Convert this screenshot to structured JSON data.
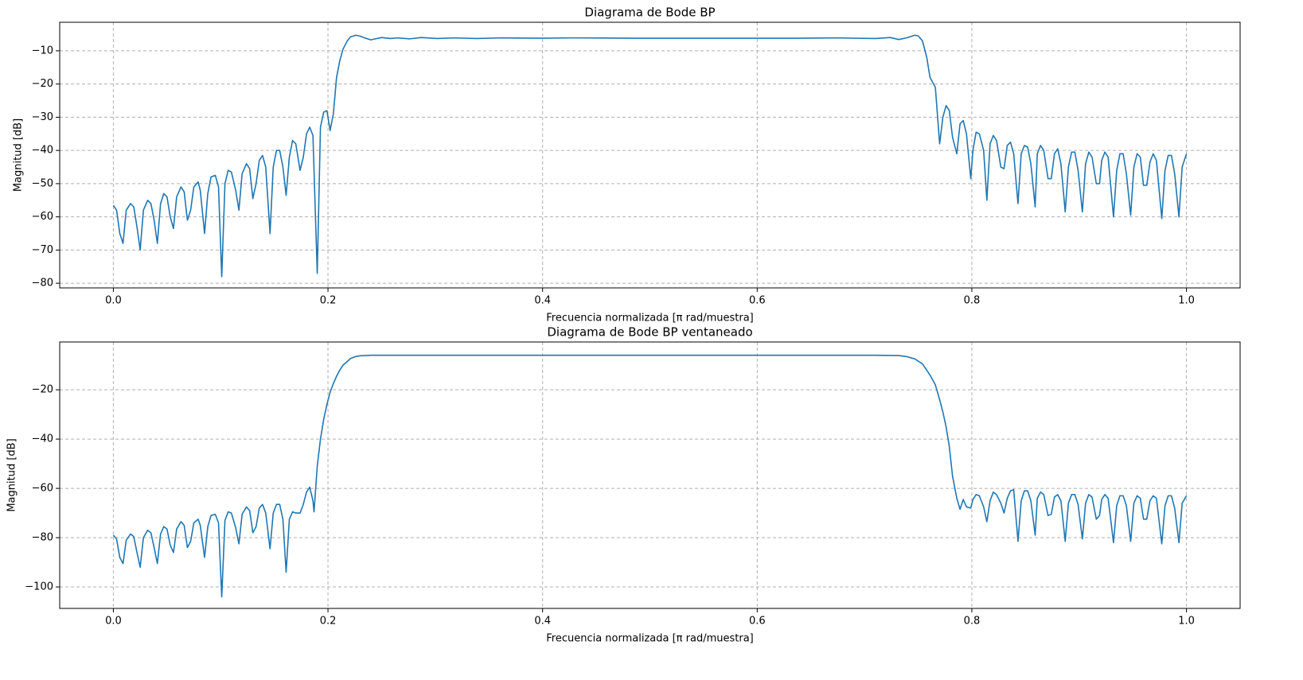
{
  "chart_data": [
    {
      "type": "line",
      "title": "Diagrama de Bode BP",
      "xlabel": "Frecuencia normalizada [π rad/muestra]",
      "ylabel": "Magnitud [dB]",
      "color": "#1f77b4",
      "grid": true,
      "xlim": [
        -0.05,
        1.05
      ],
      "ylim": [
        -81.4,
        -1.4
      ],
      "xticks": [
        {
          "value": 0,
          "label": "0.0"
        },
        {
          "value": 0.2,
          "label": "0.2"
        },
        {
          "value": 0.4,
          "label": "0.4"
        },
        {
          "value": 0.6,
          "label": "0.6"
        },
        {
          "value": 0.8,
          "label": "0.8"
        },
        {
          "value": 1,
          "label": "1.0"
        }
      ],
      "yticks": [
        {
          "value": -80,
          "label": "−80"
        },
        {
          "value": -70,
          "label": "−70"
        },
        {
          "value": -60,
          "label": "−60"
        },
        {
          "value": -50,
          "label": "−50"
        },
        {
          "value": -40,
          "label": "−40"
        },
        {
          "value": -30,
          "label": "−30"
        },
        {
          "value": -20,
          "label": "−20"
        },
        {
          "value": -10,
          "label": "−10"
        }
      ],
      "x": [
        0,
        0.003,
        0.006,
        0.009,
        0.012,
        0.016,
        0.019,
        0.022,
        0.025,
        0.028,
        0.032,
        0.035,
        0.038,
        0.041,
        0.044,
        0.047,
        0.05,
        0.053,
        0.056,
        0.059,
        0.063,
        0.066,
        0.069,
        0.072,
        0.075,
        0.079,
        0.081,
        0.085,
        0.088,
        0.091,
        0.095,
        0.098,
        0.101,
        0.104,
        0.107,
        0.11,
        0.114,
        0.117,
        0.12,
        0.124,
        0.127,
        0.13,
        0.133,
        0.136,
        0.139,
        0.142,
        0.146,
        0.149,
        0.152,
        0.155,
        0.158,
        0.161,
        0.164,
        0.167,
        0.17,
        0.174,
        0.177,
        0.18,
        0.183,
        0.186,
        0.19,
        0.193,
        0.196,
        0.199,
        0.202,
        0.205,
        0.208,
        0.211,
        0.214,
        0.218,
        0.221,
        0.226,
        0.23,
        0.235,
        0.24,
        0.244,
        0.25,
        0.258,
        0.265,
        0.276,
        0.287,
        0.302,
        0.317,
        0.339,
        0.361,
        0.399,
        0.428,
        0.487,
        0.561,
        0.636,
        0.673,
        0.71,
        0.724,
        0.732,
        0.739,
        0.747,
        0.75,
        0.754,
        0.758,
        0.761,
        0.766,
        0.77,
        0.773,
        0.776,
        0.779,
        0.782,
        0.786,
        0.789,
        0.792,
        0.795,
        0.799,
        0.801,
        0.804,
        0.807,
        0.811,
        0.814,
        0.817,
        0.82,
        0.823,
        0.827,
        0.83,
        0.833,
        0.836,
        0.839,
        0.843,
        0.846,
        0.849,
        0.852,
        0.855,
        0.859,
        0.861,
        0.864,
        0.867,
        0.871,
        0.874,
        0.877,
        0.88,
        0.883,
        0.887,
        0.89,
        0.893,
        0.896,
        0.899,
        0.903,
        0.906,
        0.909,
        0.912,
        0.916,
        0.919,
        0.921,
        0.924,
        0.927,
        0.932,
        0.935,
        0.938,
        0.941,
        0.944,
        0.948,
        0.951,
        0.954,
        0.957,
        0.96,
        0.963,
        0.966,
        0.969,
        0.972,
        0.977,
        0.98,
        0.983,
        0.986,
        0.989,
        0.993,
        0.996,
        1
      ],
      "values": [
        -56.5,
        -58,
        -65,
        -68,
        -58,
        -56,
        -57,
        -63,
        -70,
        -58,
        -55,
        -56,
        -61,
        -68,
        -56,
        -53,
        -54,
        -60,
        -63.5,
        -54,
        -51,
        -52.5,
        -61,
        -58,
        -51,
        -49.5,
        -52,
        -65,
        -53,
        -48,
        -47.5,
        -51,
        -78,
        -50,
        -46,
        -46.5,
        -52,
        -58,
        -47,
        -44,
        -45.5,
        -54.5,
        -50,
        -43,
        -41.5,
        -45,
        -65,
        -45,
        -40,
        -40,
        -45,
        -53.5,
        -42,
        -37,
        -38,
        -46,
        -42,
        -35,
        -33,
        -35.5,
        -77,
        -33,
        -28.5,
        -28,
        -34,
        -29,
        -18,
        -13,
        -9.5,
        -7,
        -5.8,
        -5.3,
        -5.6,
        -6.2,
        -6.7,
        -6.4,
        -6.0,
        -6.3,
        -6.1,
        -6.4,
        -6.0,
        -6.3,
        -6.1,
        -6.3,
        -6.1,
        -6.2,
        -6.1,
        -6.2,
        -6.2,
        -6.2,
        -6.1,
        -6.3,
        -6.0,
        -6.6,
        -6.1,
        -5.3,
        -5.5,
        -7,
        -12,
        -18,
        -21,
        -38,
        -30,
        -26.5,
        -28,
        -36,
        -41,
        -32,
        -31,
        -35,
        -48.5,
        -40,
        -34.5,
        -35,
        -40,
        -55,
        -38,
        -35.5,
        -37,
        -45,
        -45.5,
        -38.5,
        -37.5,
        -41,
        -56,
        -41,
        -38.5,
        -39,
        -44,
        -57,
        -41,
        -38.5,
        -40,
        -48.5,
        -48.5,
        -41,
        -39.5,
        -44,
        -58.5,
        -45,
        -40.5,
        -40.5,
        -46,
        -58.5,
        -44,
        -40.5,
        -42,
        -50,
        -50,
        -43,
        -40.5,
        -42,
        -60,
        -46,
        -41,
        -41,
        -47,
        -59.5,
        -45,
        -41,
        -42,
        -50.5,
        -50.5,
        -43.5,
        -41,
        -43,
        -60.5,
        -46,
        -41.5,
        -41.5,
        -47,
        -60,
        -45,
        -41
      ]
    },
    {
      "type": "line",
      "title": "Diagrama de Bode BP ventaneado",
      "xlabel": "Frecuencia normalizada [π rad/muestra]",
      "ylabel": "Magnitud [dB]",
      "color": "#1f77b4",
      "grid": true,
      "xlim": [
        -0.05,
        1.05
      ],
      "ylim": [
        -108.7,
        -0.6
      ],
      "xticks": [
        {
          "value": 0,
          "label": "0.0"
        },
        {
          "value": 0.2,
          "label": "0.2"
        },
        {
          "value": 0.4,
          "label": "0.4"
        },
        {
          "value": 0.6,
          "label": "0.6"
        },
        {
          "value": 0.8,
          "label": "0.8"
        },
        {
          "value": 1,
          "label": "1.0"
        }
      ],
      "yticks": [
        {
          "value": -100,
          "label": "−100"
        },
        {
          "value": -80,
          "label": "−80"
        },
        {
          "value": -60,
          "label": "−60"
        },
        {
          "value": -40,
          "label": "−40"
        },
        {
          "value": -20,
          "label": "−20"
        }
      ],
      "x": [
        0,
        0.003,
        0.006,
        0.009,
        0.012,
        0.016,
        0.019,
        0.022,
        0.025,
        0.028,
        0.032,
        0.035,
        0.038,
        0.041,
        0.044,
        0.047,
        0.05,
        0.053,
        0.056,
        0.059,
        0.063,
        0.066,
        0.069,
        0.072,
        0.075,
        0.079,
        0.081,
        0.085,
        0.088,
        0.091,
        0.095,
        0.098,
        0.101,
        0.104,
        0.107,
        0.11,
        0.114,
        0.117,
        0.12,
        0.124,
        0.127,
        0.13,
        0.133,
        0.136,
        0.139,
        0.142,
        0.146,
        0.149,
        0.152,
        0.155,
        0.158,
        0.161,
        0.164,
        0.167,
        0.17,
        0.174,
        0.177,
        0.18,
        0.183,
        0.186,
        0.187,
        0.19,
        0.193,
        0.196,
        0.199,
        0.202,
        0.205,
        0.208,
        0.211,
        0.214,
        0.218,
        0.221,
        0.226,
        0.23,
        0.235,
        0.24,
        0.25,
        0.339,
        0.487,
        0.636,
        0.71,
        0.732,
        0.739,
        0.747,
        0.754,
        0.761,
        0.766,
        0.77,
        0.773,
        0.776,
        0.779,
        0.782,
        0.786,
        0.789,
        0.792,
        0.795,
        0.799,
        0.801,
        0.804,
        0.807,
        0.811,
        0.814,
        0.817,
        0.82,
        0.823,
        0.827,
        0.83,
        0.833,
        0.836,
        0.839,
        0.843,
        0.846,
        0.849,
        0.852,
        0.855,
        0.859,
        0.861,
        0.864,
        0.867,
        0.871,
        0.874,
        0.877,
        0.88,
        0.883,
        0.887,
        0.89,
        0.893,
        0.896,
        0.899,
        0.903,
        0.906,
        0.909,
        0.912,
        0.916,
        0.919,
        0.921,
        0.924,
        0.927,
        0.932,
        0.935,
        0.938,
        0.941,
        0.944,
        0.948,
        0.951,
        0.954,
        0.957,
        0.96,
        0.963,
        0.966,
        0.969,
        0.972,
        0.977,
        0.98,
        0.983,
        0.986,
        0.989,
        0.993,
        0.996,
        1
      ],
      "values": [
        -79,
        -80.5,
        -88,
        -90.5,
        -81,
        -78.5,
        -79.5,
        -86,
        -92,
        -80,
        -77,
        -78,
        -84,
        -90.5,
        -78.5,
        -75.5,
        -76.5,
        -83,
        -86,
        -76.5,
        -73.5,
        -75,
        -84,
        -81.5,
        -74,
        -72.5,
        -75,
        -88,
        -75.5,
        -71,
        -70.5,
        -74,
        -104,
        -73,
        -69.5,
        -70,
        -76,
        -82.5,
        -70.5,
        -67.5,
        -69,
        -78,
        -75.5,
        -68,
        -66.5,
        -70,
        -84.5,
        -70,
        -66.5,
        -66.5,
        -72.5,
        -94,
        -72.5,
        -69.5,
        -70,
        -70,
        -66.5,
        -61.5,
        -59.5,
        -65,
        -69.5,
        -51,
        -40,
        -32,
        -26,
        -21,
        -17.5,
        -14.5,
        -12,
        -10,
        -8.5,
        -7.3,
        -6.5,
        -6.2,
        -6.1,
        -6,
        -6,
        -6,
        -6,
        -6,
        -6,
        -6.1,
        -6.5,
        -7.5,
        -9.5,
        -14,
        -18,
        -24,
        -29,
        -35,
        -43,
        -55,
        -64,
        -68.5,
        -64.5,
        -67.5,
        -68,
        -64.5,
        -62.5,
        -63,
        -67.5,
        -73.5,
        -65,
        -61.5,
        -62.5,
        -66,
        -70,
        -64,
        -61,
        -60.5,
        -81.5,
        -65,
        -61,
        -61,
        -65,
        -79,
        -64,
        -61.5,
        -62.5,
        -71,
        -70.5,
        -63.5,
        -62.5,
        -65,
        -81.5,
        -66,
        -62.5,
        -62.5,
        -66.5,
        -80.5,
        -66,
        -62.5,
        -63.5,
        -72.5,
        -71,
        -64.5,
        -62.5,
        -64,
        -82,
        -67,
        -63,
        -63,
        -67,
        -81.5,
        -66,
        -63,
        -64,
        -72.5,
        -72.5,
        -65,
        -63,
        -64,
        -82.5,
        -67,
        -63,
        -63,
        -68,
        -82,
        -66,
        -63
      ]
    }
  ]
}
